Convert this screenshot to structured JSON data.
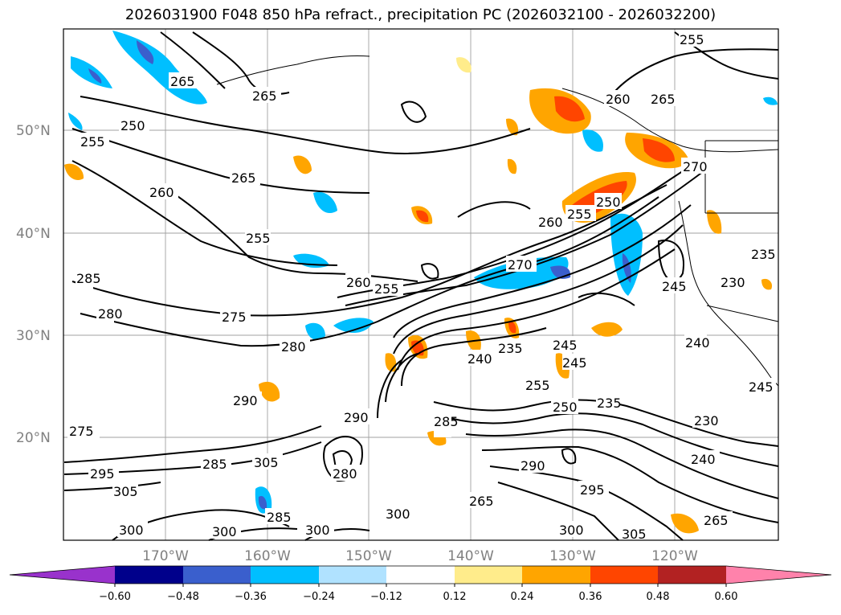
{
  "title": "2026031900 F048 850 hPa refract., precipitation PC (2026032100 - 2026032200)",
  "lat_labels": [
    "50°N",
    "40°N",
    "30°N",
    "20°N"
  ],
  "lon_labels": [
    "170°W",
    "160°W",
    "150°W",
    "140°W",
    "130°W",
    "120°W"
  ],
  "colorbar": {
    "ticks": [
      "−0.60",
      "−0.48",
      "−0.36",
      "−0.24",
      "−0.12",
      "0.12",
      "0.24",
      "0.36",
      "0.48",
      "0.60"
    ],
    "colors": [
      "#9932cc",
      "#00008b",
      "#3a5fcd",
      "#00bfff",
      "#b0e2ff",
      "#ffffff",
      "#ffec8b",
      "#ffa500",
      "#ff4500",
      "#b22222",
      "#ff82ab"
    ]
  },
  "contour_labels": [
    {
      "text": "265"
    },
    {
      "text": "265"
    },
    {
      "text": "255"
    },
    {
      "text": "250"
    },
    {
      "text": "255"
    },
    {
      "text": "260"
    },
    {
      "text": "265"
    },
    {
      "text": "255"
    },
    {
      "text": "260"
    },
    {
      "text": "265"
    },
    {
      "text": "260"
    },
    {
      "text": "255"
    },
    {
      "text": "250"
    },
    {
      "text": "270"
    },
    {
      "text": "270"
    },
    {
      "text": "260"
    },
    {
      "text": "255"
    },
    {
      "text": "245"
    },
    {
      "text": "230"
    },
    {
      "text": "235"
    },
    {
      "text": "275"
    },
    {
      "text": "280"
    },
    {
      "text": "280"
    },
    {
      "text": "240"
    },
    {
      "text": "235"
    },
    {
      "text": "245"
    },
    {
      "text": "240"
    },
    {
      "text": "290"
    },
    {
      "text": "255"
    },
    {
      "text": "250"
    },
    {
      "text": "235"
    },
    {
      "text": "230"
    },
    {
      "text": "290"
    },
    {
      "text": "285"
    },
    {
      "text": "275"
    },
    {
      "text": "280"
    },
    {
      "text": "285"
    },
    {
      "text": "305"
    },
    {
      "text": "295"
    },
    {
      "text": "285"
    },
    {
      "text": "290"
    },
    {
      "text": "295"
    },
    {
      "text": "240"
    },
    {
      "text": "305"
    },
    {
      "text": "300"
    },
    {
      "text": "300"
    },
    {
      "text": "300"
    },
    {
      "text": "300"
    },
    {
      "text": "265"
    },
    {
      "text": "300"
    },
    {
      "text": "305"
    },
    {
      "text": "265"
    },
    {
      "text": "285"
    },
    {
      "text": "245"
    },
    {
      "text": "245"
    }
  ]
}
